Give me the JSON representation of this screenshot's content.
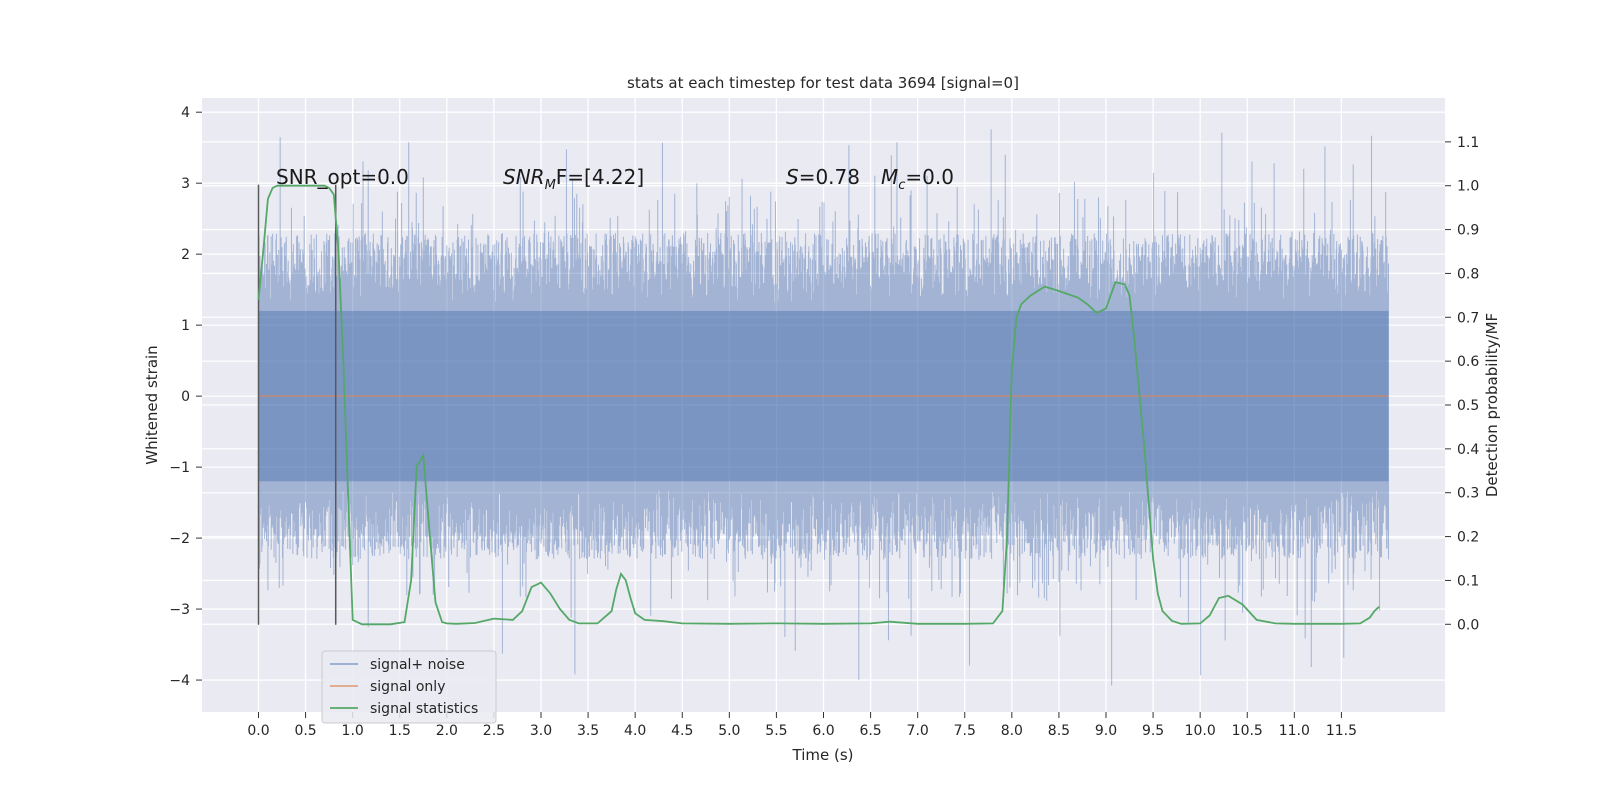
{
  "chart_data": {
    "type": "line",
    "title": "stats at each timestep for test data 3694 [signal=0]",
    "xlabel": "Time (s)",
    "ylabel_left": "Whitened strain",
    "ylabel_right": "Detection probability/MF",
    "xlim": [
      -0.6,
      12.6
    ],
    "ylim_left": [
      -4.45,
      4.2
    ],
    "ylim_right": [
      -0.2,
      1.2
    ],
    "x_ticks": [
      0.0,
      0.5,
      1.0,
      1.5,
      2.0,
      2.5,
      3.0,
      3.5,
      4.0,
      4.5,
      5.0,
      5.5,
      6.0,
      6.5,
      7.0,
      7.5,
      8.0,
      8.5,
      9.0,
      9.5,
      10.0,
      10.5,
      11.0,
      11.5
    ],
    "x_tick_labels": [
      "0.0",
      "0.5",
      "1.0",
      "1.5",
      "2.0",
      "2.5",
      "3.0",
      "3.5",
      "4.0",
      "4.5",
      "5.0",
      "5.5",
      "6.0",
      "6.5",
      "7.0",
      "7.5",
      "8.0",
      "8.5",
      "9.0",
      "9.5",
      "10.0",
      "10.5",
      "11.0",
      "11.5"
    ],
    "y_left_ticks": [
      -4,
      -3,
      -2,
      -1,
      0,
      1,
      2,
      3,
      4
    ],
    "y_left_tick_labels": [
      "−4",
      "−3",
      "−2",
      "−1",
      "0",
      "1",
      "2",
      "3",
      "4"
    ],
    "y_right_ticks": [
      0.0,
      0.1,
      0.2,
      0.3,
      0.4,
      0.5,
      0.6,
      0.7,
      0.8,
      0.9,
      1.0,
      1.1
    ],
    "y_right_tick_labels": [
      "0.0",
      "0.1",
      "0.2",
      "0.3",
      "0.4",
      "0.5",
      "0.6",
      "0.7",
      "0.8",
      "0.9",
      "1.0",
      "1.1"
    ],
    "grid": true,
    "legend_placement": "lower-left",
    "series": [
      {
        "name": "signal+ noise",
        "axis": "left",
        "kind": "noise",
        "x_range": [
          0.0,
          12.0
        ],
        "typical_range": [
          -1.3,
          1.3
        ],
        "peak_range": [
          -4.1,
          3.8
        ],
        "color": "#4c72b0"
      },
      {
        "name": "signal only",
        "axis": "left",
        "x": [
          0.0,
          12.0
        ],
        "y": [
          0.0,
          0.0
        ],
        "color": "#dd8452"
      },
      {
        "name": "signal statistics",
        "axis": "right",
        "color": "#55a868",
        "x": [
          0.0,
          0.05,
          0.1,
          0.15,
          0.2,
          0.3,
          0.4,
          0.5,
          0.6,
          0.7,
          0.75,
          0.8,
          0.85,
          0.9,
          0.95,
          1.0,
          1.1,
          1.2,
          1.4,
          1.55,
          1.62,
          1.68,
          1.75,
          1.82,
          1.88,
          1.95,
          2.0,
          2.1,
          2.3,
          2.5,
          2.7,
          2.8,
          2.9,
          3.0,
          3.1,
          3.2,
          3.3,
          3.4,
          3.6,
          3.75,
          3.8,
          3.85,
          3.9,
          3.95,
          4.0,
          4.1,
          4.3,
          4.5,
          5.0,
          5.5,
          6.0,
          6.5,
          6.7,
          7.0,
          7.5,
          7.8,
          7.9,
          7.95,
          8.0,
          8.05,
          8.1,
          8.2,
          8.35,
          8.5,
          8.7,
          8.8,
          8.9,
          9.0,
          9.1,
          9.2,
          9.25,
          9.3,
          9.4,
          9.5,
          9.55,
          9.6,
          9.7,
          9.8,
          10.0,
          10.1,
          10.2,
          10.3,
          10.45,
          10.6,
          10.8,
          11.0,
          11.5,
          11.7,
          11.8,
          11.85,
          11.9
        ],
        "y": [
          0.74,
          0.85,
          0.97,
          0.995,
          1.0,
          1.0,
          1.0,
          1.0,
          1.0,
          1.0,
          0.995,
          0.98,
          0.85,
          0.6,
          0.3,
          0.01,
          0.0,
          0.0,
          0.0,
          0.005,
          0.1,
          0.36,
          0.385,
          0.2,
          0.05,
          0.005,
          0.002,
          0.001,
          0.003,
          0.013,
          0.01,
          0.03,
          0.085,
          0.095,
          0.07,
          0.035,
          0.01,
          0.002,
          0.002,
          0.03,
          0.08,
          0.115,
          0.1,
          0.06,
          0.025,
          0.01,
          0.007,
          0.002,
          0.001,
          0.002,
          0.001,
          0.002,
          0.006,
          0.001,
          0.001,
          0.002,
          0.03,
          0.2,
          0.58,
          0.7,
          0.73,
          0.75,
          0.77,
          0.76,
          0.745,
          0.73,
          0.71,
          0.72,
          0.78,
          0.775,
          0.75,
          0.65,
          0.42,
          0.15,
          0.07,
          0.03,
          0.008,
          0.001,
          0.002,
          0.02,
          0.06,
          0.065,
          0.045,
          0.01,
          0.002,
          0.001,
          0.001,
          0.002,
          0.015,
          0.03,
          0.04
        ]
      }
    ],
    "vertical_markers": [
      0.0,
      0.82
    ],
    "annotations": [
      {
        "text": "SNR_opt=0.0"
      },
      {
        "pre": "SNR",
        "sub": "M",
        "post": "F=[4.22]"
      },
      {
        "pre": "S",
        "post": "=0.78"
      },
      {
        "pre": "M",
        "sub": "c",
        "post": "=0.0"
      }
    ],
    "colors": {
      "plot_background": "#eaeaf2",
      "grid": "#ffffff",
      "noise": "#4c72b0",
      "signal_only": "#dd8452",
      "statistics": "#55a868",
      "markers": "#595959"
    }
  }
}
